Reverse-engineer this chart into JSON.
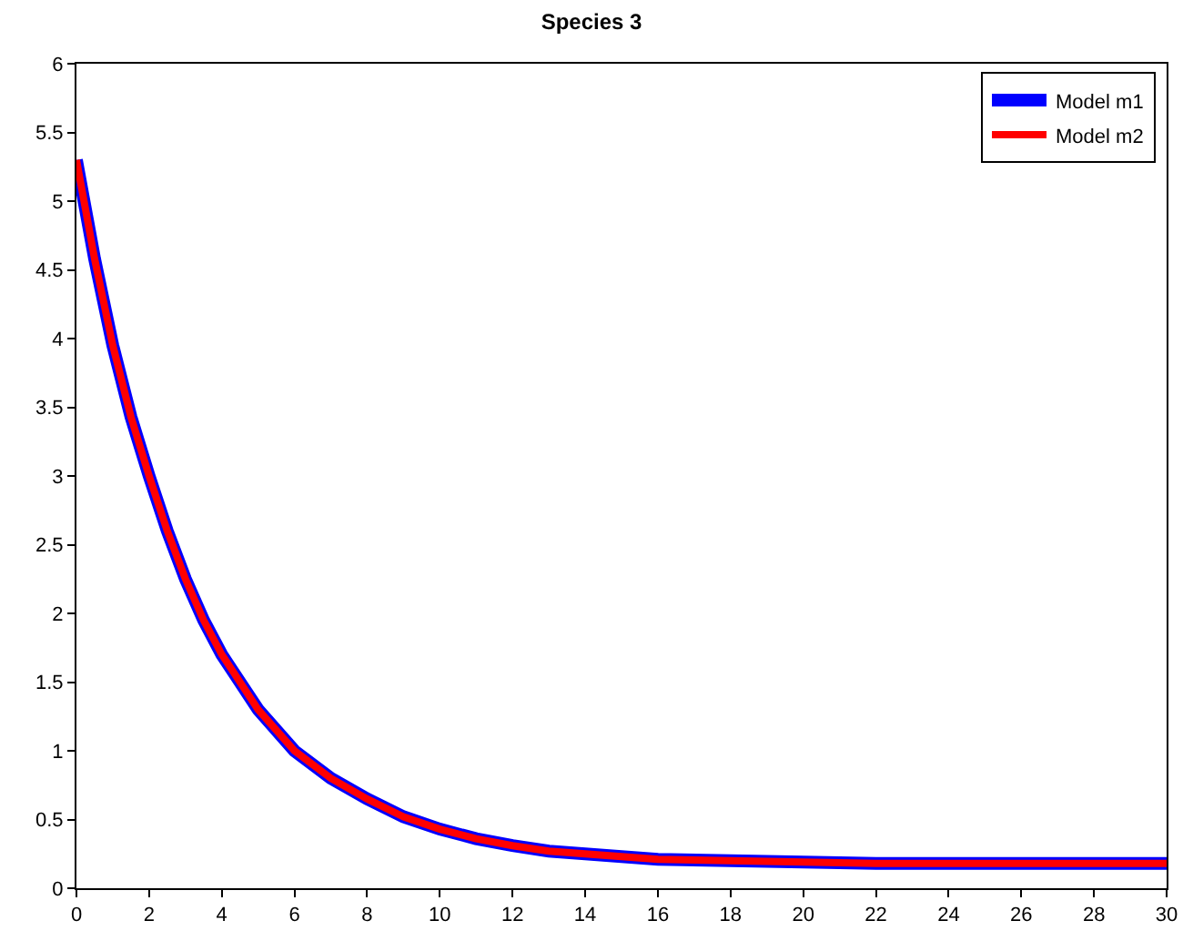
{
  "chart_data": {
    "type": "line",
    "title": "Species 3",
    "x": [
      0,
      0.5,
      1,
      1.5,
      2,
      2.5,
      3,
      3.5,
      4,
      5,
      6,
      7,
      8,
      9,
      10,
      11,
      12,
      13,
      14,
      15,
      16,
      18,
      20,
      22,
      25,
      30
    ],
    "series": [
      {
        "name": "Model m1",
        "color": "#0000ff",
        "values": [
          5.3,
          4.58,
          3.95,
          3.43,
          3.0,
          2.6,
          2.25,
          1.95,
          1.7,
          1.3,
          1.0,
          0.8,
          0.65,
          0.52,
          0.43,
          0.36,
          0.31,
          0.27,
          0.25,
          0.23,
          0.21,
          0.2,
          0.19,
          0.18,
          0.18,
          0.18
        ]
      },
      {
        "name": "Model m2",
        "color": "#ff0000",
        "values": [
          5.3,
          4.58,
          3.95,
          3.43,
          3.0,
          2.6,
          2.25,
          1.95,
          1.7,
          1.3,
          1.0,
          0.8,
          0.65,
          0.52,
          0.43,
          0.36,
          0.31,
          0.27,
          0.25,
          0.23,
          0.21,
          0.2,
          0.19,
          0.18,
          0.18,
          0.18
        ]
      }
    ],
    "xlim": [
      0,
      30
    ],
    "xticks": [
      0,
      2,
      4,
      6,
      8,
      10,
      12,
      14,
      16,
      18,
      20,
      22,
      24,
      26,
      28,
      30
    ],
    "ylim": [
      0,
      6
    ],
    "yticks": [
      0,
      0.5,
      1,
      1.5,
      2,
      2.5,
      3,
      3.5,
      4,
      4.5,
      5,
      5.5,
      6
    ],
    "grid": false,
    "legend": "top right",
    "marker": "none",
    "line_style": "solid"
  }
}
